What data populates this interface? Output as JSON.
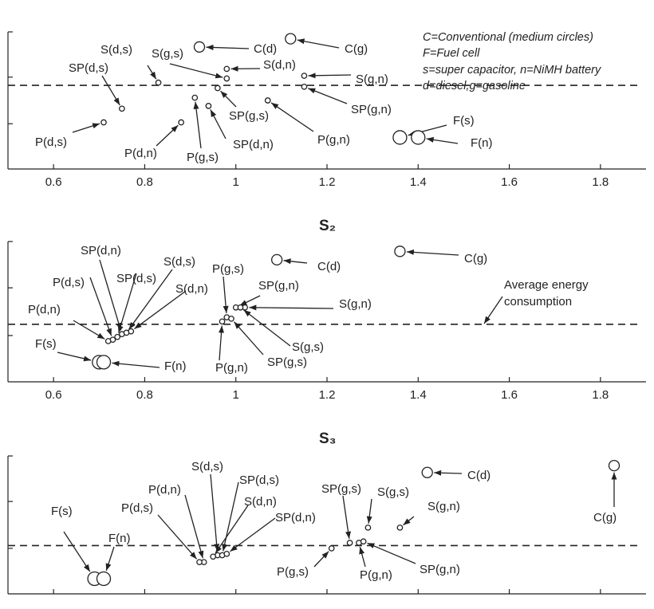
{
  "legend": [
    "C=Conventional (medium circles)",
    "F=Fuel cell",
    "s=super capacitor, n=NiMH battery",
    "d=diesel,g=gasoline"
  ],
  "chart_data": [
    {
      "type": "scatter",
      "title": "",
      "xlim": [
        0.5,
        1.9
      ],
      "ticks": [
        0.6,
        0.8,
        1.0,
        1.2,
        1.4,
        1.6,
        1.8
      ],
      "tick_labels": [
        "0.6",
        "0.8",
        "1",
        "1.2",
        "1.4",
        "1.6",
        "1.8"
      ],
      "average_line": 0.61,
      "points": [
        {
          "label": "C(d)",
          "x": 0.92,
          "y": 0.89,
          "size": "medium"
        },
        {
          "label": "C(g)",
          "x": 1.12,
          "y": 0.95,
          "size": "medium"
        },
        {
          "label": "S(d,s)",
          "x": 0.83,
          "y": 0.63,
          "size": "small"
        },
        {
          "label": "SP(d,s)",
          "x": 0.75,
          "y": 0.44,
          "size": "small"
        },
        {
          "label": "S(g,s)",
          "x": 0.98,
          "y": 0.66,
          "size": "small"
        },
        {
          "label": "S(d,n)",
          "x": 0.98,
          "y": 0.73,
          "size": "small"
        },
        {
          "label": "S(g,n)",
          "x": 1.15,
          "y": 0.68,
          "size": "small"
        },
        {
          "label": "SP(g,n)",
          "x": 1.15,
          "y": 0.6,
          "size": "small"
        },
        {
          "label": "SP(g,s)",
          "x": 0.96,
          "y": 0.59,
          "size": "small"
        },
        {
          "label": "SP(d,n)",
          "x": 0.94,
          "y": 0.46,
          "size": "small"
        },
        {
          "label": "P(d,s)",
          "x": 0.71,
          "y": 0.34,
          "size": "small"
        },
        {
          "label": "P(d,n)",
          "x": 0.88,
          "y": 0.34,
          "size": "small"
        },
        {
          "label": "P(g,s)",
          "x": 0.91,
          "y": 0.52,
          "size": "small"
        },
        {
          "label": "P(g,n)",
          "x": 1.07,
          "y": 0.5,
          "size": "small"
        },
        {
          "label": "F(s)",
          "x": 1.36,
          "y": 0.23,
          "size": "large"
        },
        {
          "label": "F(n)",
          "x": 1.4,
          "y": 0.23,
          "size": "large"
        }
      ]
    },
    {
      "type": "scatter",
      "title": "S₂",
      "xlim": [
        0.5,
        1.9
      ],
      "ticks": [
        0.6,
        0.8,
        1.0,
        1.2,
        1.4,
        1.6,
        1.8
      ],
      "tick_labels": [
        "0.6",
        "0.8",
        "1",
        "1.2",
        "1.4",
        "1.6",
        "1.8"
      ],
      "average_line": 0.41,
      "annotation": "Average energy\nconsumption",
      "points": [
        {
          "label": "C(d)",
          "x": 1.09,
          "y": 0.87,
          "size": "medium"
        },
        {
          "label": "C(g)",
          "x": 1.36,
          "y": 0.93,
          "size": "medium"
        },
        {
          "label": "SP(d,n)",
          "x": 0.75,
          "y": 0.34,
          "size": "small"
        },
        {
          "label": "S(d,s)",
          "x": 0.76,
          "y": 0.35,
          "size": "small"
        },
        {
          "label": "SP(d,s)",
          "x": 0.74,
          "y": 0.32,
          "size": "small"
        },
        {
          "label": "P(d,s)",
          "x": 0.73,
          "y": 0.3,
          "size": "small"
        },
        {
          "label": "S(d,n)",
          "x": 0.77,
          "y": 0.36,
          "size": "small"
        },
        {
          "label": "P(d,n)",
          "x": 0.72,
          "y": 0.29,
          "size": "small"
        },
        {
          "label": "F(s)",
          "x": 0.7,
          "y": 0.14,
          "size": "large"
        },
        {
          "label": "F(n)",
          "x": 0.71,
          "y": 0.14,
          "size": "large"
        },
        {
          "label": "P(g,s)",
          "x": 0.98,
          "y": 0.46,
          "size": "small"
        },
        {
          "label": "SP(g,n)",
          "x": 1.0,
          "y": 0.53,
          "size": "small"
        },
        {
          "label": "S(g,n)",
          "x": 1.02,
          "y": 0.53,
          "size": "small"
        },
        {
          "label": "S(g,s)",
          "x": 1.01,
          "y": 0.53,
          "size": "small"
        },
        {
          "label": "SP(g,s)",
          "x": 0.99,
          "y": 0.45,
          "size": "small"
        },
        {
          "label": "P(g,n)",
          "x": 0.97,
          "y": 0.43,
          "size": "small"
        }
      ]
    },
    {
      "type": "scatter",
      "title": "S₃",
      "xlim": [
        0.5,
        1.9
      ],
      "ticks": [
        0.6,
        0.8,
        1.0,
        1.2,
        1.4,
        1.6,
        1.8
      ],
      "average_line": 0.35,
      "points": [
        {
          "label": "C(d)",
          "x": 1.42,
          "y": 0.88,
          "size": "medium"
        },
        {
          "label": "C(g)",
          "x": 1.83,
          "y": 0.93,
          "size": "medium"
        },
        {
          "label": "S(d,s)",
          "x": 0.96,
          "y": 0.28,
          "size": "small"
        },
        {
          "label": "SP(d,s)",
          "x": 0.97,
          "y": 0.28,
          "size": "small"
        },
        {
          "label": "S(d,n)",
          "x": 0.95,
          "y": 0.27,
          "size": "small"
        },
        {
          "label": "SP(d,n)",
          "x": 0.98,
          "y": 0.29,
          "size": "small"
        },
        {
          "label": "P(d,n)",
          "x": 0.93,
          "y": 0.23,
          "size": "small"
        },
        {
          "label": "P(d,s)",
          "x": 0.92,
          "y": 0.23,
          "size": "small"
        },
        {
          "label": "F(s)",
          "x": 0.69,
          "y": 0.11,
          "size": "large"
        },
        {
          "label": "F(n)",
          "x": 0.71,
          "y": 0.11,
          "size": "large"
        },
        {
          "label": "SP(g,s)",
          "x": 1.25,
          "y": 0.37,
          "size": "small"
        },
        {
          "label": "S(g,s)",
          "x": 1.29,
          "y": 0.48,
          "size": "small"
        },
        {
          "label": "S(g,n)",
          "x": 1.36,
          "y": 0.48,
          "size": "small"
        },
        {
          "label": "P(g,s)",
          "x": 1.21,
          "y": 0.33,
          "size": "small"
        },
        {
          "label": "P(g,n)",
          "x": 1.27,
          "y": 0.37,
          "size": "small"
        },
        {
          "label": "SP(g,n)",
          "x": 1.28,
          "y": 0.38,
          "size": "small"
        }
      ]
    }
  ]
}
